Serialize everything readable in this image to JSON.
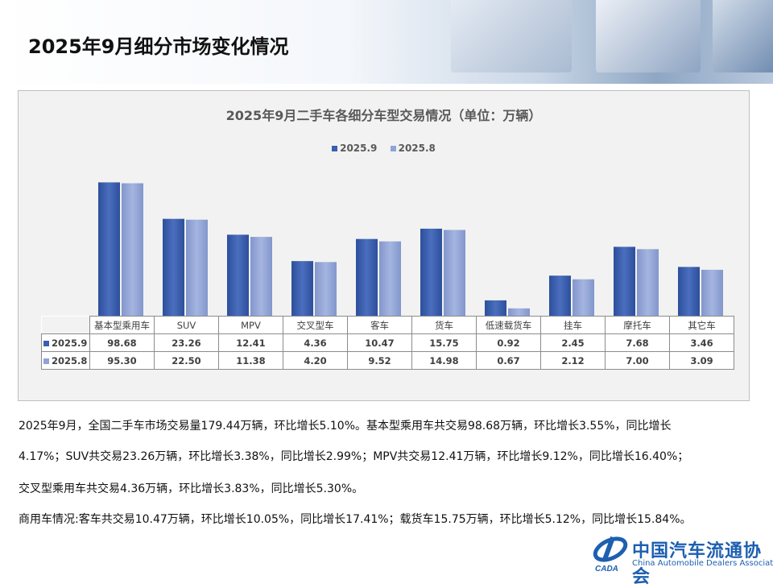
{
  "page_title": "2025年9月细分市场变化情况",
  "colors": {
    "series_2025_9": "#3a5fae",
    "series_2025_8": "#8fa3d6"
  },
  "chart_data": {
    "type": "bar",
    "title": "2025年9月二手车各细分车型交易情况（单位：万辆）",
    "yscale": "log",
    "ylim": [
      0.5,
      100
    ],
    "grid": false,
    "legend": "top",
    "categories": [
      "基本型乘用车",
      "SUV",
      "MPV",
      "交叉型车",
      "客车",
      "货车",
      "低速载货车",
      "挂车",
      "摩托车",
      "其它车"
    ],
    "series": [
      {
        "name": "2025.9",
        "values": [
          98.68,
          23.26,
          12.41,
          4.36,
          10.47,
          15.75,
          0.92,
          2.45,
          7.68,
          3.46
        ]
      },
      {
        "name": "2025.8",
        "values": [
          95.3,
          22.5,
          11.38,
          4.2,
          9.52,
          14.98,
          0.67,
          2.12,
          7.0,
          3.09
        ]
      }
    ],
    "data_table": true
  },
  "paragraphs": [
    "2025年9月，全国二手车市场交易量179.44万辆，环比增长5.10%。基本型乘用车共交易98.68万辆，环比增长3.55%，同比增长",
    "4.17%；SUV共交易23.26万辆，环比增长3.38%，同比增长2.99%；MPV共交易12.41万辆，环比增长9.12%，同比增长16.40%；",
    "交叉型乘用车共交易4.36万辆，环比增长3.83%，同比增长5.30%。",
    "商用车情况:客车共交易10.47万辆，环比增长10.05%，同比增长17.41%；载货车15.75万辆，环比增长5.12%，同比增长15.84%。"
  ],
  "logo": {
    "name_cn": "中国汽车流通协会",
    "name_en": "China Automobile Dealers Association",
    "mark": "CADA"
  }
}
